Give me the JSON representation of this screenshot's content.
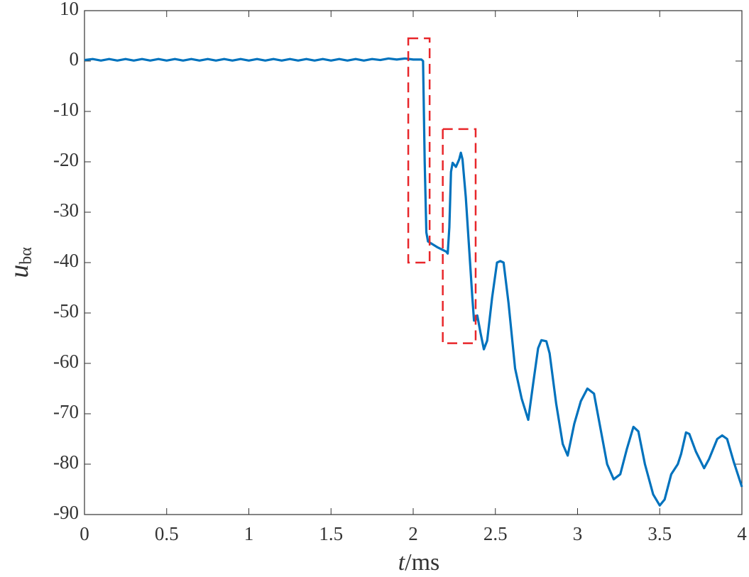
{
  "chart_data": {
    "type": "line",
    "xlabel_var": "t",
    "xlabel_unit": "/ms",
    "ylabel_var": "u",
    "ylabel_sub": "bα",
    "xlim": [
      0,
      4
    ],
    "ylim": [
      -90,
      10
    ],
    "xticks": [
      0,
      0.5,
      1,
      1.5,
      2,
      2.5,
      3,
      3.5,
      4
    ],
    "yticks": [
      10,
      0,
      -10,
      -20,
      -30,
      -40,
      -50,
      -60,
      -70,
      -80,
      -90
    ],
    "grid": false,
    "series": [
      {
        "color": "#0072bd",
        "x": [
          0,
          0.05,
          0.1,
          0.15,
          0.2,
          0.25,
          0.3,
          0.35,
          0.4,
          0.45,
          0.5,
          0.55,
          0.6,
          0.65,
          0.7,
          0.75,
          0.8,
          0.85,
          0.9,
          0.95,
          1,
          1.05,
          1.1,
          1.15,
          1.2,
          1.25,
          1.3,
          1.35,
          1.4,
          1.45,
          1.5,
          1.55,
          1.6,
          1.65,
          1.7,
          1.75,
          1.8,
          1.85,
          1.9,
          1.95,
          2,
          2.05,
          2.06,
          2.07,
          2.08,
          2.09,
          2.15,
          2.2,
          2.21,
          2.22,
          2.23,
          2.24,
          2.26,
          2.28,
          2.29,
          2.3,
          2.32,
          2.34,
          2.36,
          2.37,
          2.38,
          2.39,
          2.41,
          2.43,
          2.45,
          2.48,
          2.51,
          2.53,
          2.55,
          2.58,
          2.62,
          2.66,
          2.7,
          2.73,
          2.76,
          2.78,
          2.81,
          2.83,
          2.87,
          2.91,
          2.94,
          2.98,
          3.02,
          3.06,
          3.1,
          3.14,
          3.18,
          3.22,
          3.26,
          3.3,
          3.34,
          3.37,
          3.41,
          3.46,
          3.5,
          3.53,
          3.57,
          3.61,
          3.63,
          3.66,
          3.68,
          3.72,
          3.77,
          3.8,
          3.85,
          3.88,
          3.91,
          3.95,
          4
        ],
        "values": [
          0.2,
          0.4,
          0.1,
          0.4,
          0.1,
          0.4,
          0.1,
          0.4,
          0.1,
          0.4,
          0.1,
          0.4,
          0.1,
          0.4,
          0.1,
          0.4,
          0.1,
          0.4,
          0.1,
          0.4,
          0.1,
          0.4,
          0.1,
          0.4,
          0.1,
          0.4,
          0.1,
          0.4,
          0.1,
          0.4,
          0.1,
          0.4,
          0.1,
          0.4,
          0.1,
          0.4,
          0.2,
          0.5,
          0.3,
          0.5,
          0.3,
          0.3,
          0,
          -20,
          -34,
          -35.8,
          -37,
          -37.8,
          -38.2,
          -33,
          -22,
          -20.2,
          -21,
          -19.5,
          -18.2,
          -19.5,
          -27,
          -37,
          -47,
          -51.5,
          -51.5,
          -50.5,
          -54,
          -57.2,
          -55.5,
          -47,
          -40,
          -39.7,
          -40,
          -48,
          -61,
          -67,
          -71.2,
          -64,
          -57,
          -55.4,
          -55.6,
          -58,
          -68,
          -76,
          -78.3,
          -72,
          -67.5,
          -65,
          -66,
          -73,
          -80,
          -83,
          -82,
          -77,
          -72.6,
          -73.5,
          -80,
          -86,
          -88.2,
          -87,
          -82,
          -80,
          -78,
          -73.7,
          -74,
          -77.5,
          -80.8,
          -79,
          -75,
          -74.3,
          -75,
          -79.5,
          -84.5
        ]
      }
    ],
    "highlight_color": "#e8262a",
    "highlight_boxes": [
      {
        "x": [
          1.97,
          2.1
        ],
        "y": [
          -40,
          4.5
        ]
      },
      {
        "x": [
          2.18,
          2.38
        ],
        "y": [
          -56,
          -13.5
        ]
      }
    ]
  }
}
